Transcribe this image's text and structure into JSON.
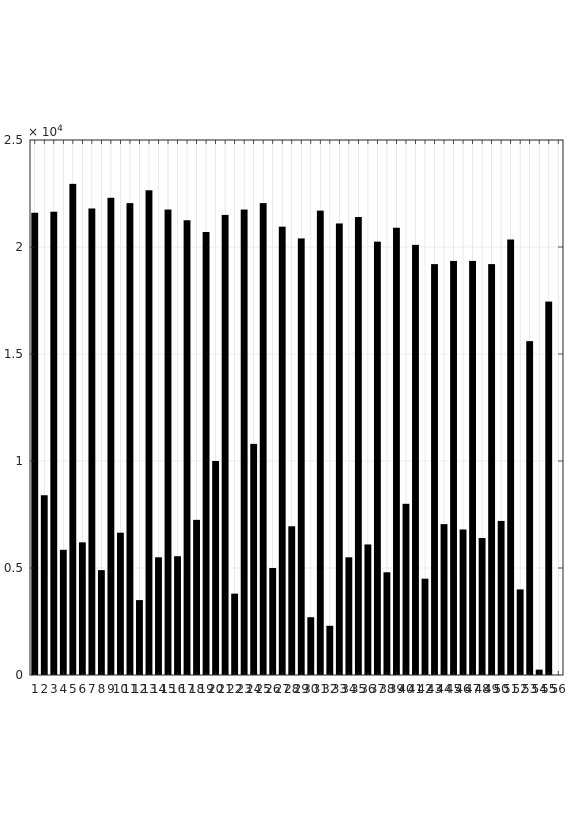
{
  "chart_data": {
    "type": "bar",
    "exponent_label": "× 10^4",
    "exponent_base": "× 10",
    "exponent_power": "4",
    "ylim": [
      0,
      25000
    ],
    "yticks": [
      0,
      5000,
      10000,
      15000,
      20000,
      25000
    ],
    "ytick_labels": [
      "0",
      "0.5",
      "1",
      "1.5",
      "2",
      "2.5"
    ],
    "grid": true,
    "bar_color": "#000000",
    "grid_color": "#dcdcdc",
    "axis_color": "#262626",
    "categories": [
      "1",
      "2",
      "3",
      "4",
      "5",
      "6",
      "7",
      "8",
      "9",
      "10",
      "11",
      "12",
      "13",
      "14",
      "15",
      "16",
      "17",
      "18",
      "19",
      "20",
      "21",
      "22",
      "23",
      "24",
      "25",
      "26",
      "27",
      "28",
      "29",
      "30",
      "31",
      "32",
      "33",
      "34",
      "35",
      "36",
      "37",
      "38",
      "39",
      "40",
      "41",
      "42",
      "43",
      "44",
      "45",
      "46",
      "47",
      "48",
      "49",
      "50",
      "51",
      "52",
      "53",
      "54",
      "55",
      "56"
    ],
    "values": [
      21600,
      8400,
      21650,
      5850,
      22950,
      6200,
      21800,
      4900,
      22300,
      6650,
      22050,
      3500,
      22650,
      5500,
      21750,
      5550,
      21250,
      7250,
      20700,
      10000,
      21500,
      3800,
      21750,
      10800,
      22050,
      5000,
      20950,
      6950,
      20400,
      2700,
      21700,
      2300,
      21100,
      5500,
      21400,
      6100,
      20250,
      4800,
      20900,
      8000,
      20100,
      4500,
      19200,
      7050,
      19350,
      6800,
      19350,
      6400,
      19200,
      7200,
      20350,
      4000,
      15600,
      250,
      17450,
      0
    ]
  }
}
